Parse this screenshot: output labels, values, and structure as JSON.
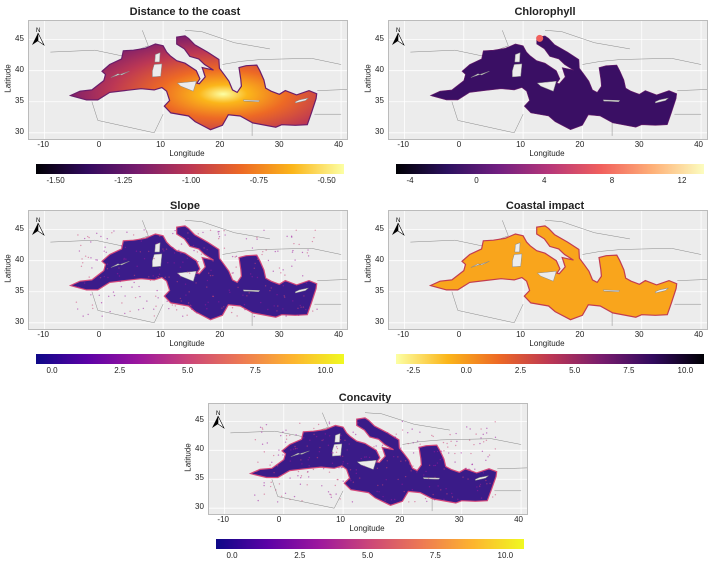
{
  "colors": {
    "land": "#ececec",
    "land_stroke": "#888888",
    "grid": "#dddddd"
  },
  "north_label": "N",
  "xlabel": "Longitude",
  "ylabel": "Latitude",
  "lon_ticks": [
    "-10",
    "0",
    "10",
    "20",
    "30",
    "40"
  ],
  "lat_ticks": [
    "45",
    "40",
    "35",
    "30"
  ],
  "panels": [
    {
      "id": "distance",
      "title": "Distance to the coast",
      "palette": "inferno",
      "sea_base": "#a3316a",
      "colorbar_ticks": [
        "-1.50",
        "-1.25",
        "-1.00",
        "-0.75",
        "-0.50"
      ]
    },
    {
      "id": "chlorophyll",
      "title": "Chlorophyll",
      "palette": "magma",
      "sea_base": "#3a0f64",
      "colorbar_ticks": [
        "-4",
        "0",
        "4",
        "8",
        "12"
      ]
    },
    {
      "id": "slope",
      "title": "Slope",
      "palette": "plasma",
      "sea_base": "#3b1c8a",
      "colorbar_ticks": [
        "0.0",
        "2.5",
        "5.0",
        "7.5",
        "10.0"
      ]
    },
    {
      "id": "coastal",
      "title": "Coastal impact",
      "palette": "inferno_rev",
      "sea_base": "#f9a51c",
      "colorbar_ticks": [
        "-2.5",
        "0.0",
        "2.5",
        "5.0",
        "7.5",
        "10.0"
      ]
    },
    {
      "id": "concavity",
      "title": "Concavity",
      "palette": "plasma",
      "sea_base": "#3a1b88",
      "colorbar_ticks": [
        "0.0",
        "2.5",
        "5.0",
        "7.5",
        "10.0"
      ]
    }
  ]
}
